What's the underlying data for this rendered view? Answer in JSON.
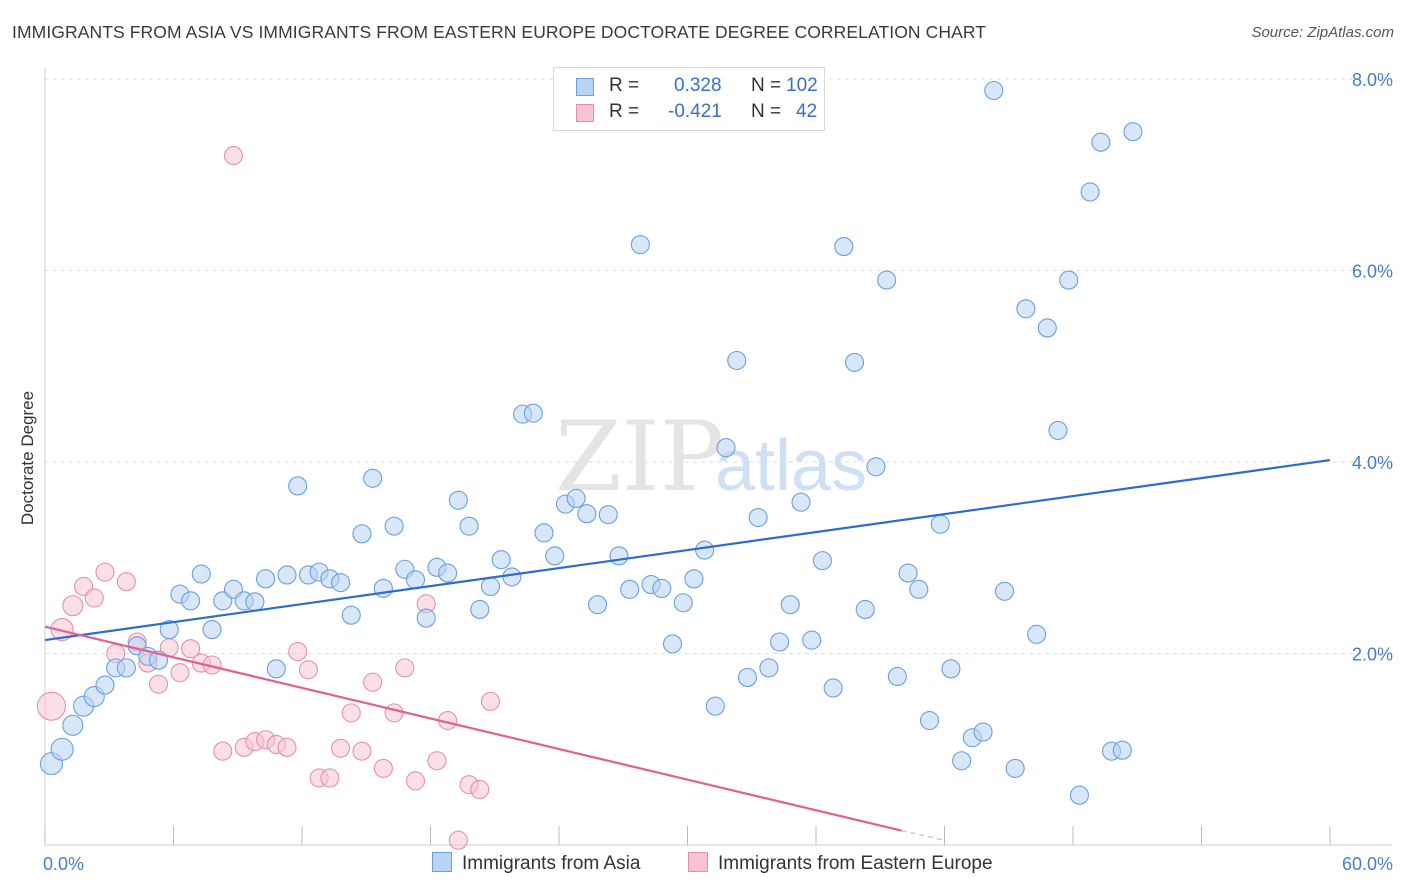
{
  "title": "IMMIGRANTS FROM ASIA VS IMMIGRANTS FROM EASTERN EUROPE DOCTORATE DEGREE CORRELATION CHART",
  "source": "Source: ZipAtlas.com",
  "watermark": {
    "zip": "ZIP",
    "atlas": "atlas"
  },
  "legend": {
    "r_label": "R =",
    "n_label": "N =",
    "asia": {
      "r": "0.328",
      "n": "102"
    },
    "eeurope": {
      "r": "-0.421",
      "n": "42"
    }
  },
  "colors": {
    "asia_fill": "#b8d3f3",
    "asia_stroke": "#6a9fe0",
    "asia_line": "#2d6ccf",
    "eeurope_fill": "#f8c4d4",
    "eeurope_stroke": "#e88fab",
    "eeurope_line": "#e0608e"
  },
  "chart_data": {
    "type": "scatter",
    "title": "IMMIGRANTS FROM ASIA VS IMMIGRANTS FROM EASTERN EUROPE DOCTORATE DEGREE CORRELATION CHART",
    "xlabel": "",
    "ylabel": "Doctorate Degree",
    "xlim": [
      0,
      60
    ],
    "ylim": [
      0,
      8.0
    ],
    "x_tick_labels": [
      "0.0%",
      "60.0%"
    ],
    "y_ticks": [
      2,
      4,
      6,
      8
    ],
    "y_tick_labels": [
      "2.0%",
      "4.0%",
      "6.0%",
      "8.0%"
    ],
    "grid": true,
    "legend_position": "bottom",
    "series": [
      {
        "name": "Immigrants from Asia",
        "trend": [
          [
            0,
            2.14
          ],
          [
            60,
            4.02
          ]
        ],
        "points": [
          [
            0.3,
            0.85,
            11
          ],
          [
            0.8,
            1.0,
            11
          ],
          [
            1.3,
            1.25,
            10
          ],
          [
            1.8,
            1.45,
            10
          ],
          [
            2.3,
            1.55,
            10
          ],
          [
            2.8,
            1.67,
            9
          ],
          [
            3.3,
            1.85,
            9
          ],
          [
            3.8,
            1.85,
            9
          ],
          [
            4.3,
            2.08,
            9
          ],
          [
            4.8,
            1.97,
            9
          ],
          [
            5.3,
            1.93,
            9
          ],
          [
            5.8,
            2.25,
            9
          ],
          [
            6.3,
            2.62,
            9
          ],
          [
            6.8,
            2.55,
            9
          ],
          [
            7.3,
            2.83,
            9
          ],
          [
            7.8,
            2.25,
            9
          ],
          [
            8.3,
            2.55,
            9
          ],
          [
            8.8,
            2.67,
            9
          ],
          [
            9.3,
            2.55,
            9
          ],
          [
            9.8,
            2.54,
            9
          ],
          [
            10.3,
            2.78,
            9
          ],
          [
            10.8,
            1.84,
            9
          ],
          [
            11.3,
            2.82,
            9
          ],
          [
            11.8,
            3.75,
            9
          ],
          [
            12.3,
            2.82,
            9
          ],
          [
            12.8,
            2.85,
            9
          ],
          [
            13.3,
            2.78,
            9
          ],
          [
            13.8,
            2.74,
            9
          ],
          [
            14.3,
            2.4,
            9
          ],
          [
            14.8,
            3.25,
            9
          ],
          [
            15.3,
            3.83,
            9
          ],
          [
            15.8,
            2.68,
            9
          ],
          [
            16.3,
            3.33,
            9
          ],
          [
            16.8,
            2.88,
            9
          ],
          [
            17.3,
            2.77,
            9
          ],
          [
            17.8,
            2.37,
            9
          ],
          [
            18.3,
            2.9,
            9
          ],
          [
            18.8,
            2.84,
            9
          ],
          [
            19.3,
            3.6,
            9
          ],
          [
            19.8,
            3.33,
            9
          ],
          [
            20.3,
            2.46,
            9
          ],
          [
            20.8,
            2.7,
            9
          ],
          [
            21.3,
            2.98,
            9
          ],
          [
            21.8,
            2.8,
            9
          ],
          [
            22.3,
            4.5,
            9
          ],
          [
            22.8,
            4.51,
            9
          ],
          [
            23.3,
            3.26,
            9
          ],
          [
            23.8,
            3.02,
            9
          ],
          [
            24.3,
            3.56,
            9
          ],
          [
            24.8,
            3.62,
            9
          ],
          [
            25.3,
            3.46,
            9
          ],
          [
            25.8,
            2.51,
            9
          ],
          [
            26.3,
            3.45,
            9
          ],
          [
            26.8,
            3.02,
            9
          ],
          [
            27.3,
            2.67,
            9
          ],
          [
            27.8,
            6.27,
            9
          ],
          [
            28.3,
            2.72,
            9
          ],
          [
            28.8,
            2.68,
            9
          ],
          [
            29.3,
            2.1,
            9
          ],
          [
            29.8,
            2.53,
            9
          ],
          [
            30.3,
            2.78,
            9
          ],
          [
            30.8,
            3.08,
            9
          ],
          [
            31.3,
            1.45,
            9
          ],
          [
            31.8,
            4.15,
            9
          ],
          [
            32.3,
            5.06,
            9
          ],
          [
            32.8,
            1.75,
            9
          ],
          [
            33.3,
            3.42,
            9
          ],
          [
            33.8,
            1.85,
            9
          ],
          [
            34.3,
            2.12,
            9
          ],
          [
            34.8,
            2.51,
            9
          ],
          [
            35.3,
            3.58,
            9
          ],
          [
            35.8,
            2.14,
            9
          ],
          [
            36.3,
            2.97,
            9
          ],
          [
            36.8,
            1.64,
            9
          ],
          [
            37.3,
            6.25,
            9
          ],
          [
            37.8,
            5.04,
            9
          ],
          [
            38.3,
            2.46,
            9
          ],
          [
            38.8,
            3.95,
            9
          ],
          [
            39.3,
            5.9,
            9
          ],
          [
            39.8,
            1.76,
            9
          ],
          [
            40.3,
            2.84,
            9
          ],
          [
            40.8,
            2.67,
            9
          ],
          [
            41.3,
            1.3,
            9
          ],
          [
            41.8,
            3.35,
            9
          ],
          [
            42.3,
            1.84,
            9
          ],
          [
            42.8,
            0.88,
            9
          ],
          [
            43.3,
            1.12,
            9
          ],
          [
            43.8,
            1.18,
            9
          ],
          [
            44.3,
            7.88,
            9
          ],
          [
            44.8,
            2.65,
            9
          ],
          [
            45.3,
            0.8,
            9
          ],
          [
            45.8,
            5.6,
            9
          ],
          [
            46.3,
            2.2,
            9
          ],
          [
            46.8,
            5.4,
            9
          ],
          [
            47.3,
            4.33,
            9
          ],
          [
            47.8,
            5.9,
            9
          ],
          [
            48.3,
            0.52,
            9
          ],
          [
            48.8,
            6.82,
            9
          ],
          [
            49.3,
            7.34,
            9
          ],
          [
            49.8,
            0.98,
            9
          ],
          [
            50.3,
            0.99,
            9
          ],
          [
            50.8,
            7.45,
            9
          ]
        ]
      },
      {
        "name": "Immigrants from Eastern Europe",
        "trend": [
          [
            0,
            2.28
          ],
          [
            40,
            0.15
          ]
        ],
        "trend_dashed": [
          [
            40,
            0.15
          ],
          [
            42,
            0.05
          ]
        ],
        "points": [
          [
            0.3,
            1.45,
            14
          ],
          [
            0.8,
            2.25,
            11
          ],
          [
            1.3,
            2.5,
            10
          ],
          [
            1.8,
            2.7,
            9
          ],
          [
            2.3,
            2.58,
            9
          ],
          [
            2.8,
            2.85,
            9
          ],
          [
            3.3,
            2.0,
            9
          ],
          [
            3.8,
            2.75,
            9
          ],
          [
            4.3,
            2.12,
            9
          ],
          [
            4.8,
            1.9,
            9
          ],
          [
            5.3,
            1.68,
            9
          ],
          [
            5.8,
            2.06,
            9
          ],
          [
            6.3,
            1.8,
            9
          ],
          [
            6.8,
            2.05,
            9
          ],
          [
            7.3,
            1.9,
            9
          ],
          [
            7.8,
            1.88,
            9
          ],
          [
            8.3,
            0.98,
            9
          ],
          [
            8.8,
            7.2,
            9
          ],
          [
            9.3,
            1.02,
            9
          ],
          [
            9.8,
            1.08,
            9
          ],
          [
            10.3,
            1.1,
            9
          ],
          [
            10.8,
            1.05,
            9
          ],
          [
            11.3,
            1.02,
            9
          ],
          [
            11.8,
            2.02,
            9
          ],
          [
            12.3,
            1.83,
            9
          ],
          [
            12.8,
            0.7,
            9
          ],
          [
            13.3,
            0.7,
            9
          ],
          [
            13.8,
            1.01,
            9
          ],
          [
            14.3,
            1.38,
            9
          ],
          [
            14.8,
            0.98,
            9
          ],
          [
            15.3,
            1.7,
            9
          ],
          [
            15.8,
            0.8,
            9
          ],
          [
            16.3,
            1.38,
            9
          ],
          [
            16.8,
            1.85,
            9
          ],
          [
            17.3,
            0.67,
            9
          ],
          [
            17.8,
            2.52,
            9
          ],
          [
            18.3,
            0.88,
            9
          ],
          [
            18.8,
            1.3,
            9
          ],
          [
            19.3,
            0.05,
            9
          ],
          [
            19.8,
            0.63,
            9
          ],
          [
            20.3,
            0.58,
            9
          ],
          [
            20.8,
            1.5,
            9
          ]
        ]
      }
    ]
  },
  "bottom_legend": {
    "asia": "Immigrants from Asia",
    "eeurope": "Immigrants from Eastern Europe"
  }
}
